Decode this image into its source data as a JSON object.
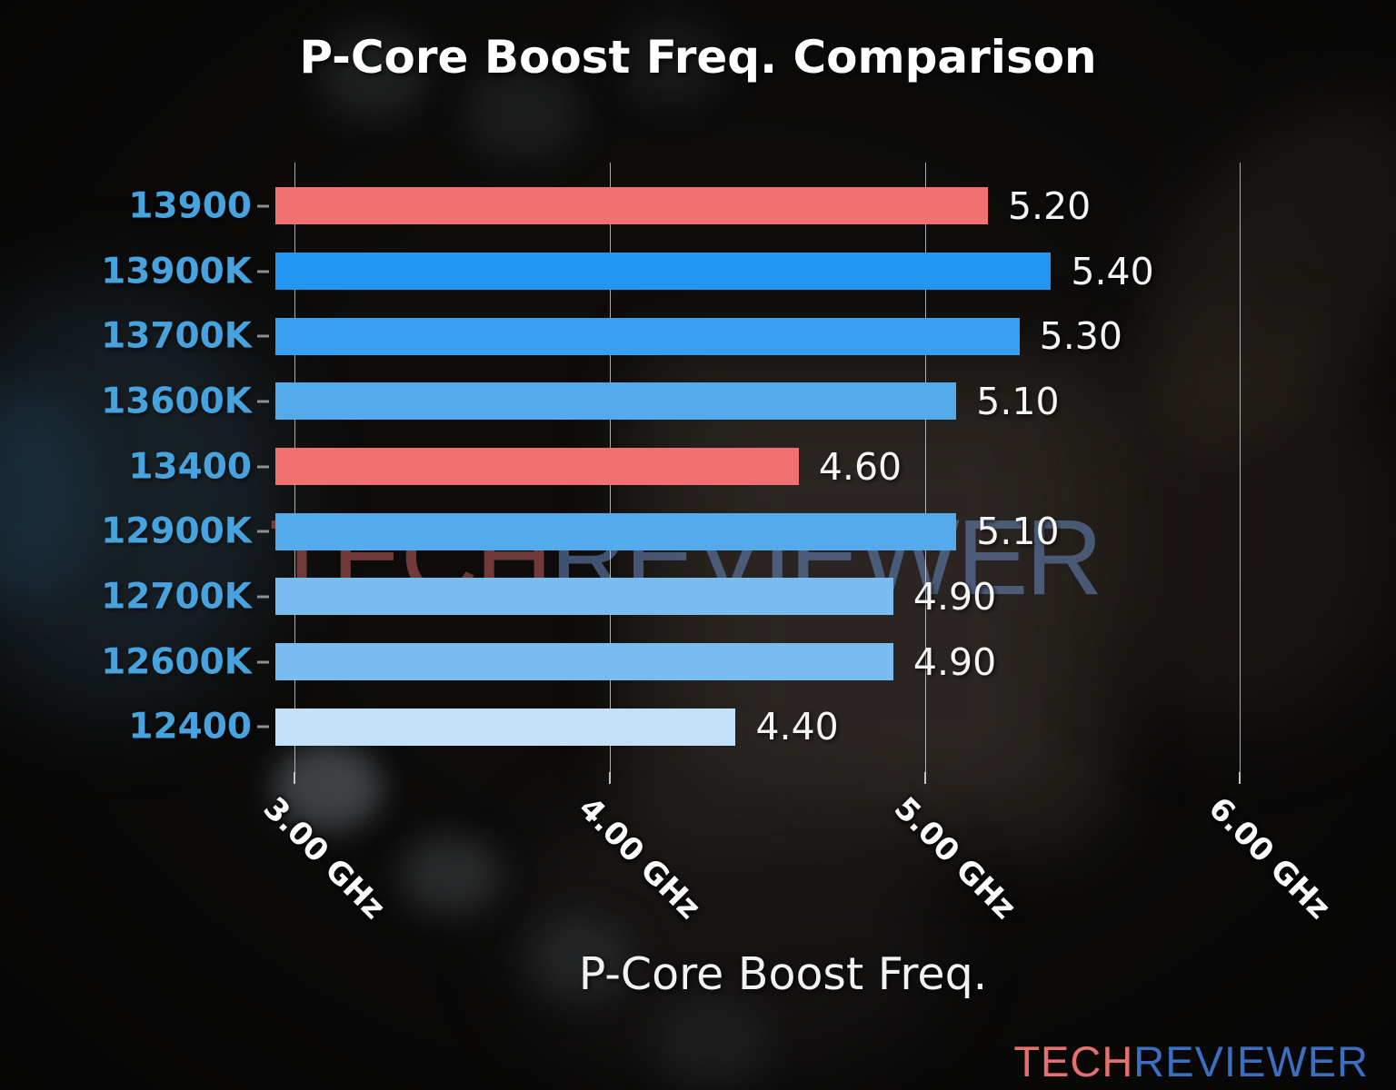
{
  "title": "P-Core Boost Freq. Comparison",
  "watermark": {
    "part1": "TECH",
    "part2": "REVIEWER"
  },
  "logo": {
    "part1": "TECH",
    "part2": "REVIEWER"
  },
  "colors": {
    "category_label_blue": "#46a3dd",
    "value_label_white": "#f5f5f5",
    "gridline": "#eeeeee",
    "highlight_red": "#f17170",
    "logo_red": "#e5716e",
    "logo_blue": "#3c6fc1",
    "watermark_red": "#984c4c",
    "watermark_blue": "#6480b2"
  },
  "chart_data": {
    "type": "bar",
    "orientation": "horizontal",
    "title": "P-Core Boost Freq. Comparison",
    "xlabel": "P-Core Boost Freq.",
    "ylabel": "",
    "categories": [
      "13900",
      "13900K",
      "13700K",
      "13600K",
      "13400",
      "12900K",
      "12700K",
      "12600K",
      "12400"
    ],
    "values": [
      5.2,
      5.4,
      5.3,
      5.1,
      4.6,
      5.1,
      4.9,
      4.9,
      4.4
    ],
    "value_labels": [
      "5.20",
      "5.40",
      "5.30",
      "5.10",
      "4.60",
      "5.10",
      "4.90",
      "4.90",
      "4.40"
    ],
    "bar_colors": [
      "#f17170",
      "#2396f2",
      "#39a0f1",
      "#55aaec",
      "#f17170",
      "#55aaec",
      "#79bcf0",
      "#79bcf0",
      "#c3e1f8"
    ],
    "unit": "GHz",
    "xlim": [
      2.94,
      6.16
    ],
    "xticks": [
      3,
      4,
      5,
      6
    ],
    "xtick_labels": [
      "3.00 GHz",
      "4.00 GHz",
      "5.00 GHz",
      "6.00 GHz"
    ],
    "grid": true,
    "legend": null
  }
}
